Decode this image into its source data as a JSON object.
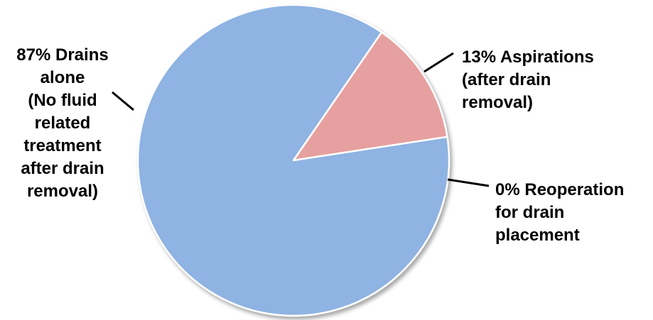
{
  "chart_data": {
    "type": "pie",
    "title": "",
    "start_angle_deg": -55.5,
    "direction": "clockwise",
    "edge_color": "#ffffff",
    "shadow": true,
    "slices": [
      {
        "value": 13,
        "color": "#e6a09f",
        "label_lines": [
          "13% Aspirations",
          "(after drain",
          "removal)"
        ]
      },
      {
        "value": 0,
        "color": "#8fb3e2",
        "label_lines": [
          "0% Reoperation",
          "for drain",
          "placement"
        ]
      },
      {
        "value": 87,
        "color": "#8fb3e2",
        "label_lines": [
          "87% Drains",
          "alone",
          "(No fluid",
          "related",
          "treatment",
          "after drain",
          "removal)"
        ]
      }
    ]
  }
}
